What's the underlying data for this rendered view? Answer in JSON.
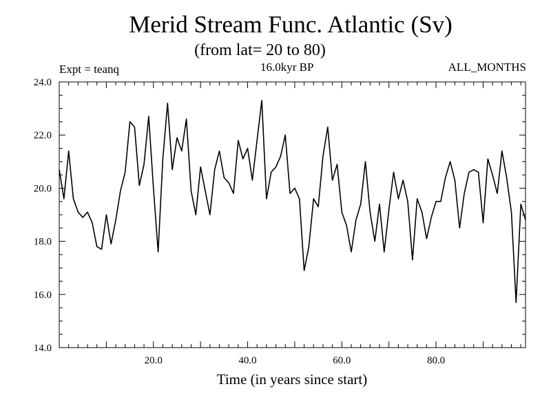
{
  "chart_data": {
    "type": "line",
    "title": "Merid Stream Func. Atlantic (Sv)",
    "subtitle": "(from lat= 20 to 80)",
    "experiment": "Expt = teanq",
    "era": "16.0kyr BP",
    "period": "ALL_MONTHS",
    "xlabel": "Time (in years since start)",
    "ylabel": "",
    "xlim": [
      0,
      99
    ],
    "ylim": [
      14.0,
      24.0
    ],
    "xticks": [
      20.0,
      40.0,
      60.0,
      80.0
    ],
    "xtick_labels": [
      "20.0",
      "40.0",
      "60.0",
      "80.0"
    ],
    "yticks": [
      14.0,
      16.0,
      18.0,
      20.0,
      22.0,
      24.0
    ],
    "ytick_labels": [
      "14.0",
      "16.0",
      "18.0",
      "20.0",
      "22.0",
      "24.0"
    ],
    "series": [
      {
        "name": "Merid Stream Func. Atlantic",
        "color": "#000000",
        "x": [
          0,
          1,
          2,
          3,
          4,
          5,
          6,
          7,
          8,
          9,
          10,
          11,
          12,
          13,
          14,
          15,
          16,
          17,
          18,
          19,
          20,
          21,
          22,
          23,
          24,
          25,
          26,
          27,
          28,
          29,
          30,
          31,
          32,
          33,
          34,
          35,
          36,
          37,
          38,
          39,
          40,
          41,
          42,
          43,
          44,
          45,
          46,
          47,
          48,
          49,
          50,
          51,
          52,
          53,
          54,
          55,
          56,
          57,
          58,
          59,
          60,
          61,
          62,
          63,
          64,
          65,
          66,
          67,
          68,
          69,
          70,
          71,
          72,
          73,
          74,
          75,
          76,
          77,
          78,
          79,
          80,
          81,
          82,
          83,
          84,
          85,
          86,
          87,
          88,
          89,
          90,
          91,
          92,
          93,
          94,
          95,
          96,
          97,
          98,
          99
        ],
        "values": [
          20.7,
          19.6,
          21.4,
          19.6,
          19.1,
          18.9,
          19.1,
          18.7,
          17.8,
          17.7,
          19.0,
          17.9,
          18.8,
          19.9,
          20.6,
          22.5,
          22.3,
          20.1,
          20.9,
          22.7,
          20.0,
          17.6,
          21.1,
          23.2,
          20.7,
          21.9,
          21.4,
          22.6,
          19.9,
          19.0,
          20.8,
          19.9,
          19.0,
          20.7,
          21.4,
          20.4,
          20.2,
          19.8,
          21.8,
          21.1,
          21.5,
          20.3,
          21.8,
          23.3,
          19.6,
          20.6,
          20.8,
          21.2,
          22.0,
          19.8,
          20.0,
          19.6,
          16.9,
          17.8,
          19.6,
          19.3,
          21.2,
          22.3,
          20.3,
          20.9,
          19.1,
          18.6,
          17.6,
          18.8,
          19.4,
          21.0,
          19.1,
          18.0,
          19.4,
          17.6,
          19.2,
          20.6,
          19.6,
          20.3,
          19.5,
          17.3,
          19.6,
          19.1,
          18.1,
          18.9,
          19.5,
          19.5,
          20.4,
          21.0,
          20.3,
          18.5,
          19.8,
          20.6,
          20.7,
          20.6,
          18.7,
          21.1,
          20.5,
          19.8,
          21.4,
          20.4,
          19.1,
          15.7,
          19.4,
          18.8
        ]
      }
    ]
  }
}
